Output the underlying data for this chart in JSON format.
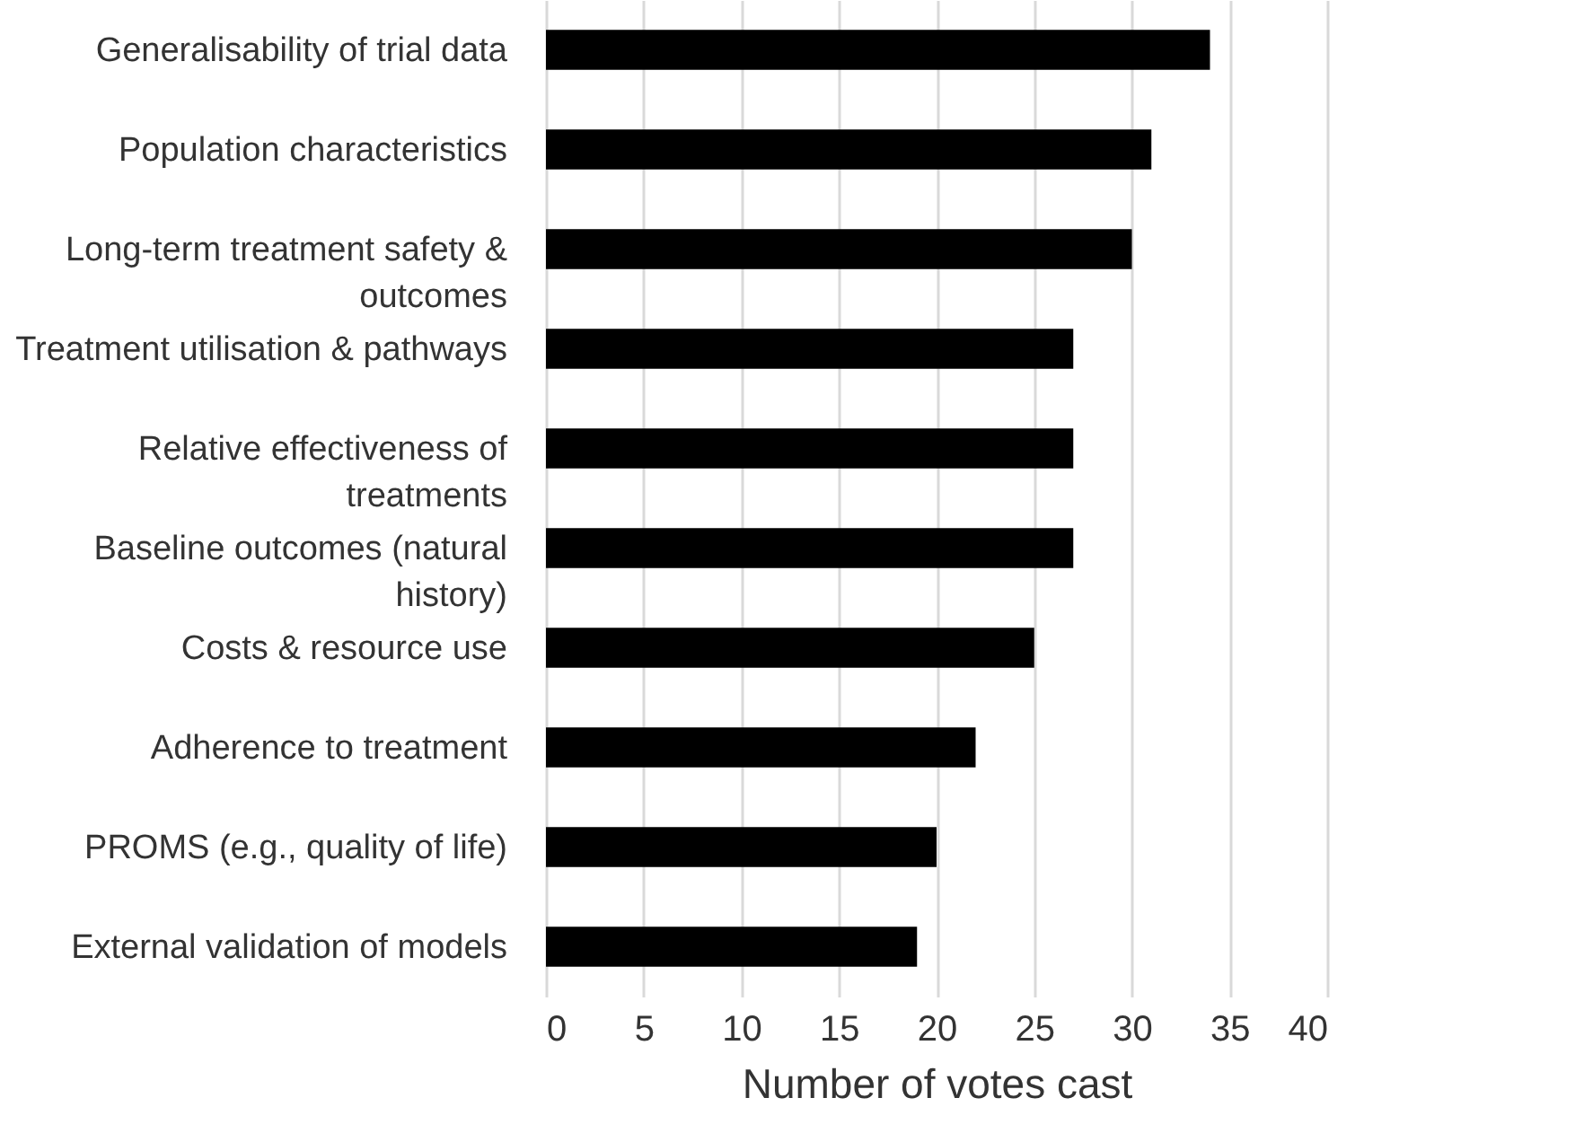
{
  "chart_data": {
    "type": "bar",
    "orientation": "horizontal",
    "categories": [
      "Generalisability of trial data",
      "Population characteristics",
      "Long-term treatment safety & outcomes",
      "Treatment utilisation & pathways",
      "Relative effectiveness of treatments",
      "Baseline outcomes (natural history)",
      "Costs & resource use",
      "Adherence to treatment",
      "PROMS (e.g., quality of life)",
      "External validation of models"
    ],
    "values": [
      34,
      31,
      30,
      27,
      27,
      27,
      25,
      22,
      20,
      19
    ],
    "color": "#000000",
    "xlabel": "Number of votes cast",
    "xlim": [
      0,
      40
    ],
    "xticks": [
      0,
      5,
      10,
      15,
      20,
      25,
      30,
      35,
      40
    ],
    "grid": "x"
  }
}
